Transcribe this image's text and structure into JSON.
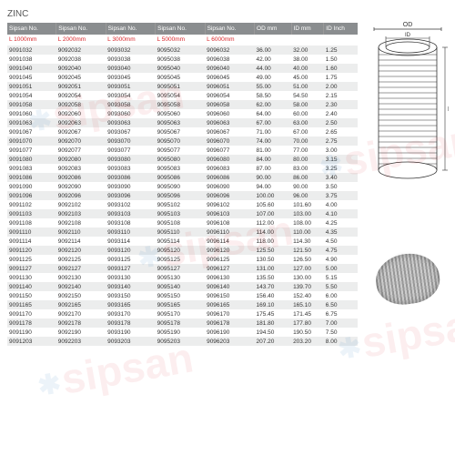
{
  "title": "ZINC",
  "headers": [
    "Sipsan No.",
    "Sipsan No.",
    "Sipsan No.",
    "Sipsan No.",
    "Sipsan No.",
    "OD mm",
    "ID mm",
    "ID Inch"
  ],
  "subheaders": [
    "L 1000mm",
    "L 2000mm",
    "L 3000mm",
    "L 5000mm",
    "L 6000mm",
    "",
    "",
    ""
  ],
  "diagram": {
    "labels": {
      "od": "OD",
      "id": "ID",
      "l": "L"
    }
  },
  "rows": [
    [
      "9091032",
      "9092032",
      "9093032",
      "9095032",
      "9096032",
      "36.00",
      "32.00",
      "1.25"
    ],
    [
      "9091038",
      "9092038",
      "9093038",
      "9095038",
      "9096038",
      "42.00",
      "38.00",
      "1.50"
    ],
    [
      "9091040",
      "9092040",
      "9093040",
      "9095040",
      "9096040",
      "44.00",
      "40.00",
      "1.60"
    ],
    [
      "9091045",
      "9092045",
      "9093045",
      "9095045",
      "9096045",
      "49.00",
      "45.00",
      "1.75"
    ],
    [
      "9091051",
      "9092051",
      "9093051",
      "9095051",
      "9096051",
      "55.00",
      "51.00",
      "2.00"
    ],
    [
      "9091054",
      "9092054",
      "9093054",
      "9095054",
      "9096054",
      "58.50",
      "54.50",
      "2.15"
    ],
    [
      "9091058",
      "9092058",
      "9093058",
      "9095058",
      "9096058",
      "62.00",
      "58.00",
      "2.30"
    ],
    [
      "9091060",
      "9092060",
      "9093060",
      "9095060",
      "9096060",
      "64.00",
      "60.00",
      "2.40"
    ],
    [
      "9091063",
      "9092063",
      "9093063",
      "9095063",
      "9096063",
      "67.00",
      "63.00",
      "2.50"
    ],
    [
      "9091067",
      "9092067",
      "9093067",
      "9095067",
      "9096067",
      "71.00",
      "67.00",
      "2.65"
    ],
    [
      "9091070",
      "9092070",
      "9093070",
      "9095070",
      "9096070",
      "74.00",
      "70.00",
      "2.75"
    ],
    [
      "9091077",
      "9092077",
      "9093077",
      "9095077",
      "9096077",
      "81.00",
      "77.00",
      "3.00"
    ],
    [
      "9091080",
      "9092080",
      "9093080",
      "9095080",
      "9096080",
      "84.00",
      "80.00",
      "3.15"
    ],
    [
      "9091083",
      "9092083",
      "9093083",
      "9095083",
      "9096083",
      "87.00",
      "83.00",
      "3.25"
    ],
    [
      "9091086",
      "9092086",
      "9093086",
      "9095086",
      "9096086",
      "90.00",
      "86.00",
      "3.40"
    ],
    [
      "9091090",
      "9092090",
      "9093090",
      "9095090",
      "9096090",
      "94.00",
      "90.00",
      "3.50"
    ],
    [
      "9091096",
      "9092096",
      "9093096",
      "9095096",
      "9096096",
      "100.00",
      "96.00",
      "3.75"
    ],
    [
      "9091102",
      "9092102",
      "9093102",
      "9095102",
      "9096102",
      "105.60",
      "101.60",
      "4.00"
    ],
    [
      "9091103",
      "9092103",
      "9093103",
      "9095103",
      "9096103",
      "107.00",
      "103.00",
      "4.10"
    ],
    [
      "9091108",
      "9092108",
      "9093108",
      "9095108",
      "9096108",
      "112.00",
      "108.00",
      "4.25"
    ],
    [
      "9091110",
      "9092110",
      "9093110",
      "9095110",
      "9096110",
      "114.00",
      "110.00",
      "4.35"
    ],
    [
      "9091114",
      "9092114",
      "9093114",
      "9095114",
      "9096114",
      "118.00",
      "114.30",
      "4.50"
    ],
    [
      "9091120",
      "9092120",
      "9093120",
      "9095120",
      "9096120",
      "125.50",
      "121.50",
      "4.75"
    ],
    [
      "9091125",
      "9092125",
      "9093125",
      "9095125",
      "9096125",
      "130.50",
      "126.50",
      "4.90"
    ],
    [
      "9091127",
      "9092127",
      "9093127",
      "9095127",
      "9096127",
      "131.00",
      "127.00",
      "5.00"
    ],
    [
      "9091130",
      "9092130",
      "9093130",
      "9095130",
      "9096130",
      "135.50",
      "130.00",
      "5.15"
    ],
    [
      "9091140",
      "9092140",
      "9093140",
      "9095140",
      "9096140",
      "143.70",
      "139.70",
      "5.50"
    ],
    [
      "9091150",
      "9092150",
      "9093150",
      "9095150",
      "9096150",
      "156.40",
      "152.40",
      "6.00"
    ],
    [
      "9091165",
      "9092165",
      "9093165",
      "9095165",
      "9096165",
      "169.10",
      "165.10",
      "6.50"
    ],
    [
      "9091170",
      "9092170",
      "9093170",
      "9095170",
      "9096170",
      "175.45",
      "171.45",
      "6.75"
    ],
    [
      "9091178",
      "9092178",
      "9093178",
      "9095178",
      "9096178",
      "181.80",
      "177.80",
      "7.00"
    ],
    [
      "9091190",
      "9092190",
      "9093190",
      "9095190",
      "9096190",
      "194.50",
      "190.50",
      "7.50"
    ],
    [
      "9091203",
      "9092203",
      "9093203",
      "9095203",
      "9096203",
      "207.20",
      "203.20",
      "8.00"
    ]
  ],
  "watermark": "sipsan",
  "colors": {
    "headerBg": "#8a8d8f",
    "headerFg": "#ffffff",
    "rowAlt": "#eceded",
    "red": "#d9252a",
    "text": "#333333",
    "wmBlue": "#0066b3"
  }
}
